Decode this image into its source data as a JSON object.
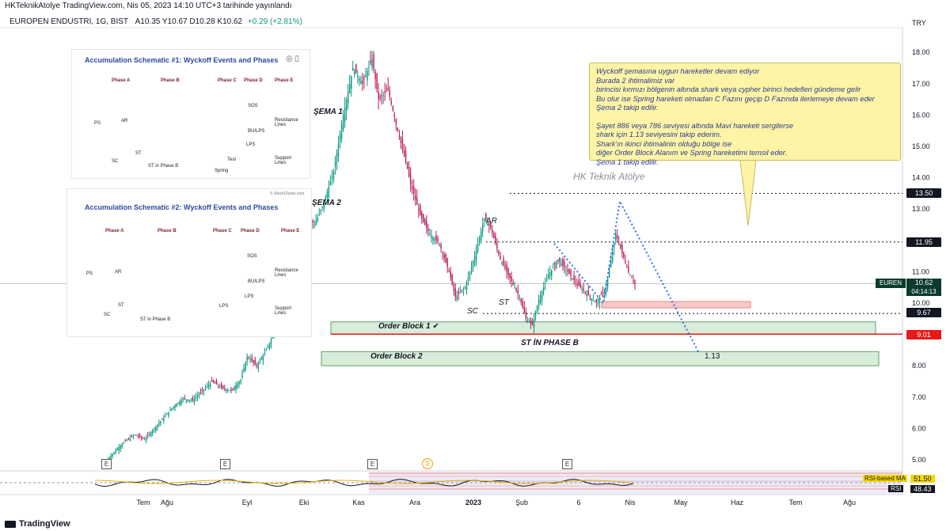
{
  "header": {
    "published": "HKTeknikAtolye TradingView.com, Nis 05, 2023 14:10 UTC+3 tarihinde yayınlandı"
  },
  "symbol_bar": {
    "name": "EUROPEN ENDUSTRI, 1G, BIST",
    "ohlc": "A10.35  Y10.67  D10.28  K10.62",
    "change": "+0.29 (+2.81%)"
  },
  "currency": "TRY",
  "watermark": "HK Teknik Atölye",
  "note": {
    "lines": [
      "Wyckoff şemasına uygun hareketler devam ediyor",
      "Burada 2 ihtimalimiz var",
      "birincisi kırmızı bölgenin altında shark veya cypher birinci hedefleri gündeme gelir",
      "Bu olur ise Spring hareketi olmadan C Fazını geçip D Fazında ilerlemeye devam eder",
      "Şema 2 takip edilir.",
      "",
      "Şayet 886 veya 786 seviyesi altında Mavi hareketi sergilerse",
      "shark için 1.13 seviyesini takip ederim.",
      "Shark'ın ikinci ihtimalinin olduğu bölge ise",
      "diğer Order Block Alanım ve Spring hareketimi temsil eder.",
      "Şema 1 takip edilir."
    ]
  },
  "annotations": {
    "sema1": "ŞEMA 1",
    "sema2": "ŞEMA 2",
    "ar": "AR",
    "sc": "SC",
    "st": "ST",
    "st_phase_b": "ST İN PHASE B",
    "ob1": "Order Block 1",
    "ob2": "Order Block 2",
    "fib": "1.13"
  },
  "inset1": {
    "title": "Accumulation Schematic #1: Wyckoff Events and Phases",
    "phases": [
      "Phase A",
      "Phase B",
      "Phase C",
      "Phase D",
      "Phase E"
    ],
    "labels": {
      "ps": "PS",
      "ar": "AR",
      "sc": "SC",
      "st": "ST",
      "st_b": "ST in Phase B",
      "spring": "Spring",
      "test": "Test",
      "sos": "SOS",
      "bu": "BU/LPS",
      "lps": "LPS",
      "res": "Resistance Lines",
      "sup": "Support Lines"
    }
  },
  "inset2": {
    "title": "Accumulation Schematic #2: Wyckoff Events and Phases",
    "credit": "© StockCharts.com",
    "phases": [
      "Phase A",
      "Phase B",
      "Phase C",
      "Phase D",
      "Phase E"
    ],
    "labels": {
      "ps": "PS",
      "ar": "AR",
      "sc": "SC",
      "st": "ST",
      "st_b": "ST in Phase B",
      "lps": "LPS",
      "lps2": "LPS",
      "sos": "SOS",
      "bu": "BU/LPS",
      "res": "Resistance Lines",
      "sup": "Support Lines"
    }
  },
  "price_tags": {
    "t1350": "13.50",
    "t1195": "11.95",
    "t967": "9.67",
    "t901": "9.01",
    "eurenSym": "EUREN",
    "eurenPrice": "10.62",
    "eurenTime": "04:14:13"
  },
  "rsi": {
    "ma_label": "RSI-based MA",
    "ma_value": "51.50",
    "rsi_label": "RSI",
    "rsi_value": "48.43"
  },
  "events": {
    "e": "E",
    "d": "S"
  },
  "footer": {
    "brand": "TradingView"
  },
  "chart_data": {
    "type": "candlestick",
    "symbol": "EUREN",
    "timeframe": "1G",
    "y_axis": {
      "ticks": [
        5.0,
        6.0,
        7.0,
        8.0,
        9.0,
        10.0,
        11.0,
        12.0,
        13.0,
        14.0,
        15.0,
        16.0,
        17.0,
        18.0
      ],
      "tick_labels": [
        "5.00",
        "6.00",
        "7.00",
        "8.00",
        "9.00",
        "10.00",
        "11.00",
        "12.00",
        "13.00",
        "14.00",
        "15.00",
        "16.00",
        "17.00",
        "18.00"
      ]
    },
    "x_axis": {
      "labels": [
        "Tem",
        "Ağu",
        "Eyl",
        "Eki",
        "Kas",
        "Ara",
        "2023",
        "Şub",
        "6",
        "Nis",
        "May",
        "Haz",
        "Tem",
        "Ağu"
      ]
    },
    "last": {
      "open": 10.35,
      "high": 10.67,
      "low": 10.28,
      "close": 10.62
    },
    "levels": [
      13.5,
      11.95,
      9.67,
      9.01
    ],
    "order_blocks": [
      {
        "name": "Order Block 1",
        "low": 9.0,
        "high": 9.4
      },
      {
        "name": "Order Block 2",
        "low": 8.0,
        "high": 8.45
      }
    ],
    "series": [
      {
        "name": "EUREN",
        "path": [
          [
            0,
            4.95
          ],
          [
            6,
            5.3
          ],
          [
            12,
            5.6
          ],
          [
            18,
            5.8
          ],
          [
            24,
            5.65
          ],
          [
            30,
            6.0
          ],
          [
            36,
            6.35
          ],
          [
            42,
            6.7
          ],
          [
            48,
            6.95
          ],
          [
            54,
            6.9
          ],
          [
            60,
            7.2
          ],
          [
            66,
            7.5
          ],
          [
            72,
            7.3
          ],
          [
            78,
            7.2
          ],
          [
            84,
            7.55
          ],
          [
            88,
            8.3
          ],
          [
            94,
            8.0
          ],
          [
            100,
            8.5
          ],
          [
            106,
            9.2
          ],
          [
            112,
            10.5
          ],
          [
            118,
            11.8
          ],
          [
            124,
            12.9
          ],
          [
            130,
            12.5
          ],
          [
            136,
            13.2
          ],
          [
            142,
            14.2
          ],
          [
            148,
            16.0
          ],
          [
            154,
            17.5
          ],
          [
            160,
            17.0
          ],
          [
            166,
            17.8
          ],
          [
            170,
            16.5
          ],
          [
            176,
            16.8
          ],
          [
            182,
            15.5
          ],
          [
            188,
            14.3
          ],
          [
            190,
            13.8
          ],
          [
            196,
            12.8
          ],
          [
            202,
            12.2
          ],
          [
            208,
            11.9
          ],
          [
            214,
            11.0
          ],
          [
            218,
            10.2
          ],
          [
            224,
            10.5
          ],
          [
            230,
            11.5
          ],
          [
            236,
            12.7
          ],
          [
            240,
            12.4
          ],
          [
            246,
            11.4
          ],
          [
            252,
            10.8
          ],
          [
            258,
            10.2
          ],
          [
            262,
            9.5
          ],
          [
            266,
            9.3
          ],
          [
            270,
            10.1
          ],
          [
            276,
            10.9
          ],
          [
            282,
            11.4
          ],
          [
            288,
            11.0
          ],
          [
            294,
            10.6
          ],
          [
            300,
            10.3
          ],
          [
            306,
            10.0
          ],
          [
            312,
            10.5
          ],
          [
            318,
            12.2
          ],
          [
            322,
            11.6
          ],
          [
            326,
            11.0
          ],
          [
            330,
            10.62
          ]
        ]
      }
    ]
  }
}
